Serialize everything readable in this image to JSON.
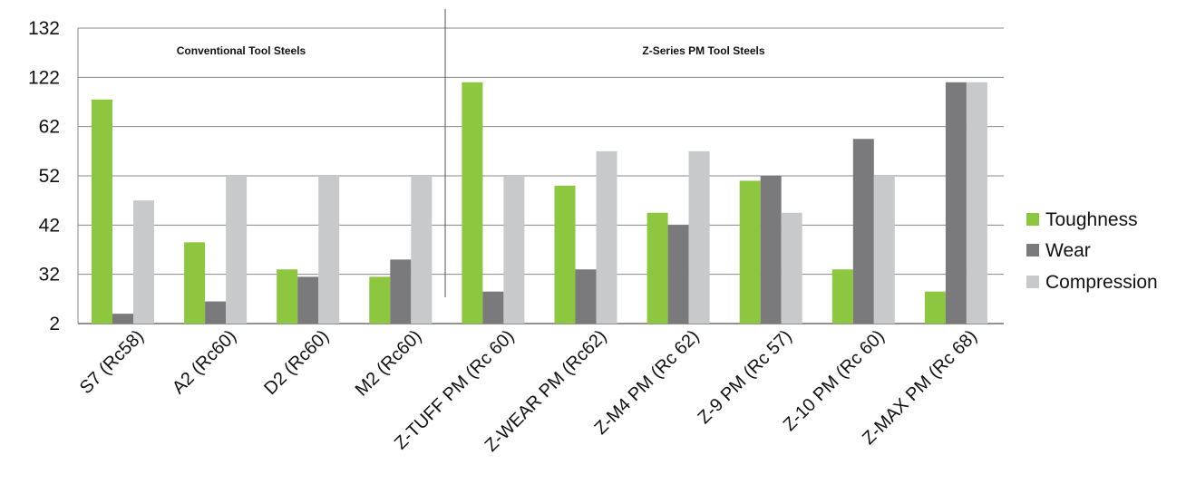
{
  "chart_data": {
    "type": "bar",
    "title": "",
    "xlabel": "",
    "ylabel": "",
    "y_tick_labels": [
      "2",
      "32",
      "42",
      "52",
      "62",
      "122",
      "132"
    ],
    "ylim": [
      0,
      6
    ],
    "value_scale_note": "values given on the category-spaced tick scale: 0=2, 1=32, 2=42, 3=52, 4=62, 5=122, 6=132",
    "grid": true,
    "legend_position": "right",
    "categories": [
      "S7 (Rc58)",
      "A2 (Rc60)",
      "D2 (Rc60)",
      "M2 (Rc60)",
      "Z-TUFF PM (Rc 60)",
      "Z-WEAR PM (Rc62)",
      "Z-M4 PM (Rc 62)",
      "Z-9 PM (Rc 57)",
      "Z-10 PM (Rc 60)",
      "Z-MAX PM (Rc 68)"
    ],
    "series": [
      {
        "name": "Toughness",
        "color": "#8dc63f",
        "values": [
          4.55,
          1.65,
          1.1,
          0.95,
          4.9,
          2.8,
          2.25,
          2.9,
          1.1,
          0.65
        ]
      },
      {
        "name": "Wear",
        "color": "#7a7a7d",
        "values": [
          0.2,
          0.45,
          0.95,
          1.3,
          0.65,
          1.1,
          2.0,
          3.0,
          3.75,
          4.9
        ]
      },
      {
        "name": "Compression",
        "color": "#c8c9cb",
        "values": [
          2.5,
          3.0,
          3.0,
          3.0,
          3.0,
          3.5,
          3.5,
          2.25,
          3.0,
          4.9
        ]
      }
    ],
    "annotations": [
      {
        "text": "Conventional Tool Steels"
      },
      {
        "text": "Z-Series PM Tool Steels"
      }
    ]
  }
}
